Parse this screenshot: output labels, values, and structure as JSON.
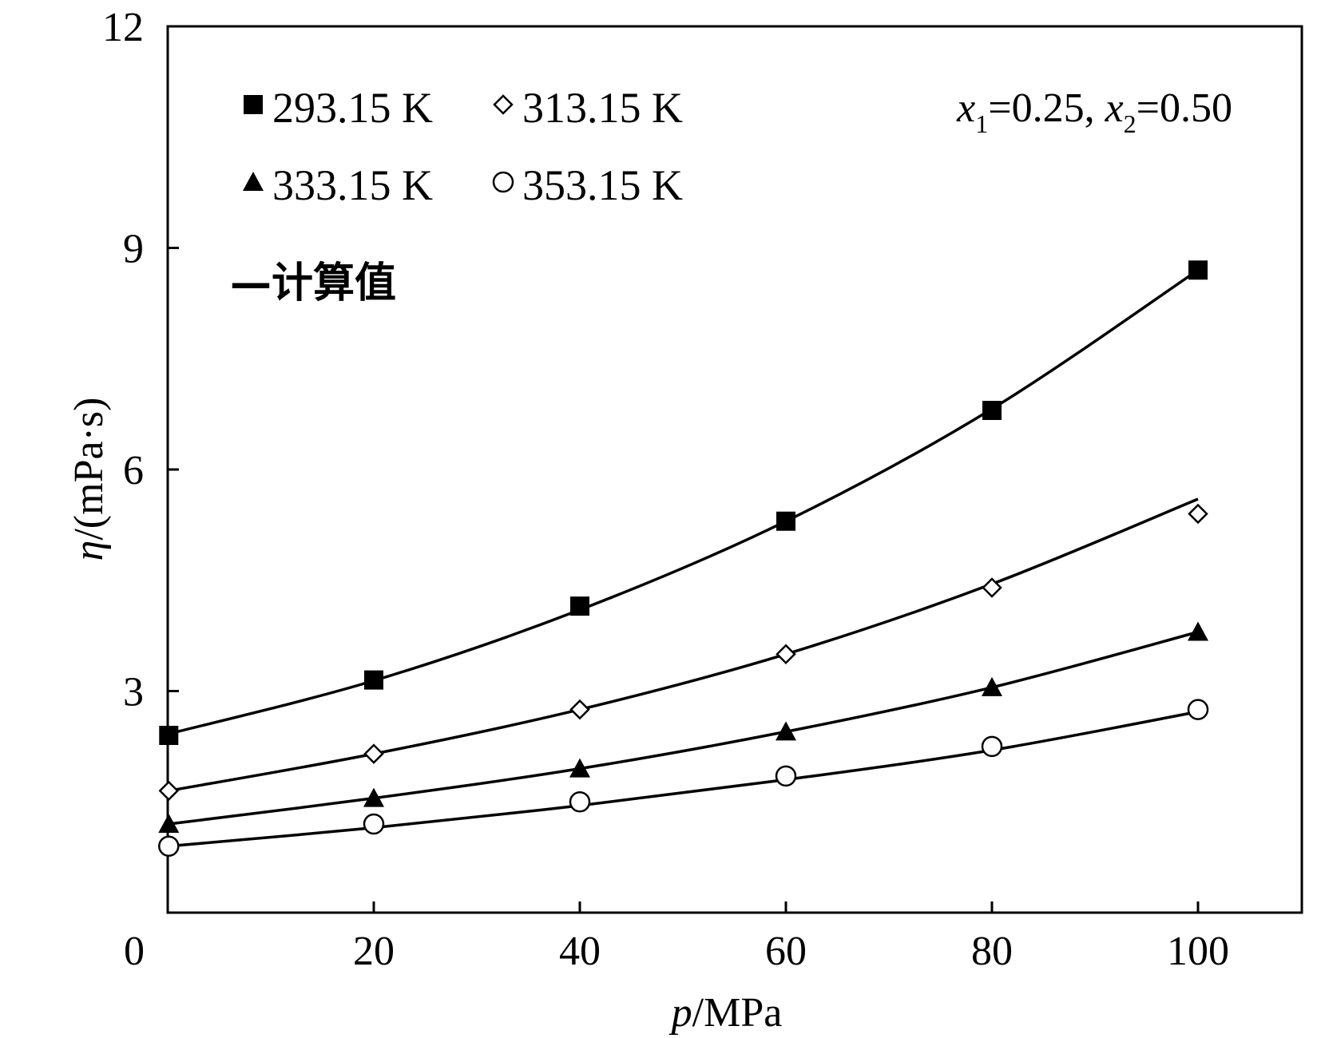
{
  "chart_data": {
    "type": "line",
    "xlabel": {
      "var": "p",
      "unit": "/MPa"
    },
    "ylabel": {
      "var": "η",
      "unit": "/(mPa·s)"
    },
    "xlim": [
      0,
      110
    ],
    "ylim": [
      0,
      12
    ],
    "xticks": [
      0,
      20,
      40,
      60,
      80,
      100
    ],
    "yticks": [
      3,
      6,
      9,
      12
    ],
    "annotation": {
      "x1": "x",
      "x1_sub": "1",
      "x1_val": "=0.25, ",
      "x2": "x",
      "x2_sub": "2",
      "x2_val": "=0.50"
    },
    "legend_calc": "—计算值",
    "series": [
      {
        "name": "293.15 K",
        "marker": "square-filled",
        "points": [
          [
            0.1,
            2.4
          ],
          [
            20,
            3.15
          ],
          [
            40,
            4.15
          ],
          [
            60,
            5.3
          ],
          [
            80,
            6.8
          ],
          [
            100,
            8.7
          ]
        ],
        "curve": [
          [
            0.1,
            2.42
          ],
          [
            20,
            3.14
          ],
          [
            40,
            4.1
          ],
          [
            60,
            5.3
          ],
          [
            80,
            6.82
          ],
          [
            100,
            8.7
          ]
        ]
      },
      {
        "name": "313.15 K",
        "marker": "diamond-open",
        "points": [
          [
            0.1,
            1.65
          ],
          [
            20,
            2.15
          ],
          [
            40,
            2.75
          ],
          [
            60,
            3.5
          ],
          [
            80,
            4.4
          ],
          [
            100,
            5.4
          ]
        ],
        "curve": [
          [
            0.1,
            1.65
          ],
          [
            20,
            2.15
          ],
          [
            40,
            2.75
          ],
          [
            60,
            3.5
          ],
          [
            80,
            4.45
          ],
          [
            100,
            5.6
          ]
        ]
      },
      {
        "name": "333.15 K",
        "marker": "triangle-filled",
        "points": [
          [
            0.1,
            1.2
          ],
          [
            20,
            1.55
          ],
          [
            40,
            1.95
          ],
          [
            60,
            2.45
          ],
          [
            80,
            3.05
          ],
          [
            100,
            3.8
          ]
        ],
        "curve": [
          [
            0.1,
            1.2
          ],
          [
            20,
            1.55
          ],
          [
            40,
            1.95
          ],
          [
            60,
            2.45
          ],
          [
            80,
            3.05
          ],
          [
            100,
            3.8
          ]
        ]
      },
      {
        "name": "353.15 K",
        "marker": "circle-open",
        "points": [
          [
            0.1,
            0.9
          ],
          [
            20,
            1.2
          ],
          [
            40,
            1.5
          ],
          [
            60,
            1.85
          ],
          [
            80,
            2.25
          ],
          [
            100,
            2.75
          ]
        ],
        "curve": [
          [
            0.1,
            0.9
          ],
          [
            20,
            1.15
          ],
          [
            40,
            1.45
          ],
          [
            60,
            1.8
          ],
          [
            80,
            2.2
          ],
          [
            100,
            2.72
          ]
        ]
      }
    ]
  }
}
